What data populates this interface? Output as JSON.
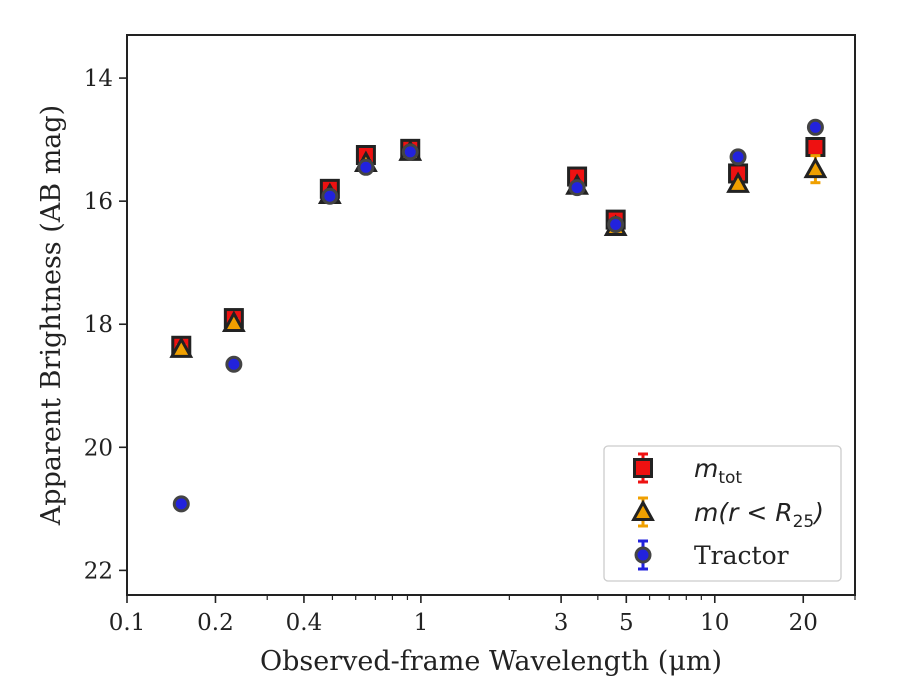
{
  "chart_data": {
    "type": "scatter",
    "title": "",
    "xlabel": "Observed-frame Wavelength (μm)",
    "ylabel": "Apparent Brightness (AB mag)",
    "xscale": "log",
    "xlim": [
      0.1,
      30
    ],
    "ylim": [
      22.4,
      13.3
    ],
    "y_inverted": true,
    "grid": false,
    "legend_position": "lower-right",
    "x_ticks": [
      {
        "value": 0.1,
        "label": "0.1"
      },
      {
        "value": 0.2,
        "label": "0.2"
      },
      {
        "value": 0.4,
        "label": "0.4"
      },
      {
        "value": 1,
        "label": "1"
      },
      {
        "value": 3,
        "label": "3"
      },
      {
        "value": 5,
        "label": "5"
      },
      {
        "value": 10,
        "label": "10"
      },
      {
        "value": 20,
        "label": "20"
      }
    ],
    "x_minor_ticks": [
      0.3,
      0.5,
      0.6,
      0.7,
      0.8,
      0.9,
      2,
      4,
      6,
      7,
      8,
      9,
      30
    ],
    "y_ticks": [
      {
        "value": 14,
        "label": "14"
      },
      {
        "value": 16,
        "label": "16"
      },
      {
        "value": 18,
        "label": "18"
      },
      {
        "value": 20,
        "label": "20"
      },
      {
        "value": 22,
        "label": "22"
      }
    ],
    "series": [
      {
        "key": "mtot",
        "legend_main": "m",
        "legend_sub": "tot",
        "marker": "square",
        "color": "#ee1111",
        "errcolor": "#ee1111",
        "points": [
          {
            "x": 0.153,
            "y": 18.35,
            "err": 0.05
          },
          {
            "x": 0.231,
            "y": 17.9,
            "err": 0.05
          },
          {
            "x": 0.49,
            "y": 15.8,
            "err": 0.05
          },
          {
            "x": 0.65,
            "y": 15.25,
            "err": 0.05
          },
          {
            "x": 0.92,
            "y": 15.15,
            "err": 0.05
          },
          {
            "x": 3.4,
            "y": 15.6,
            "err": 0.05
          },
          {
            "x": 4.6,
            "y": 16.3,
            "err": 0.05
          },
          {
            "x": 12,
            "y": 15.55,
            "err": 0.05
          },
          {
            "x": 22,
            "y": 15.12,
            "err": 0.05
          }
        ]
      },
      {
        "key": "mr25",
        "legend_main": "m(r < R",
        "legend_sub": "25",
        "legend_tail": ")",
        "marker": "triangle",
        "color": "#f0a000",
        "errcolor": "#f0a000",
        "points": [
          {
            "x": 0.153,
            "y": 18.4,
            "err": 0.05
          },
          {
            "x": 0.231,
            "y": 17.98,
            "err": 0.05
          },
          {
            "x": 0.49,
            "y": 15.9,
            "err": 0.05
          },
          {
            "x": 0.65,
            "y": 15.38,
            "err": 0.05
          },
          {
            "x": 0.92,
            "y": 15.2,
            "err": 0.05
          },
          {
            "x": 3.4,
            "y": 15.75,
            "err": 0.05
          },
          {
            "x": 4.6,
            "y": 16.42,
            "err": 0.05
          },
          {
            "x": 12,
            "y": 15.72,
            "err": 0.05
          },
          {
            "x": 22,
            "y": 15.48,
            "err": 0.22
          }
        ]
      },
      {
        "key": "tractor",
        "legend_main": "Tractor",
        "marker": "circle",
        "color": "#2222dd",
        "errcolor": "#2222dd",
        "points": [
          {
            "x": 0.153,
            "y": 20.92,
            "err": 0.05
          },
          {
            "x": 0.231,
            "y": 18.65,
            "err": 0.05
          },
          {
            "x": 0.49,
            "y": 15.92,
            "err": 0.05
          },
          {
            "x": 0.65,
            "y": 15.45,
            "err": 0.05
          },
          {
            "x": 0.92,
            "y": 15.2,
            "err": 0.05
          },
          {
            "x": 3.4,
            "y": 15.78,
            "err": 0.05
          },
          {
            "x": 4.6,
            "y": 16.38,
            "err": 0.05
          },
          {
            "x": 12,
            "y": 15.28,
            "err": 0.05
          },
          {
            "x": 22,
            "y": 14.8,
            "err": 0.05
          }
        ]
      }
    ]
  }
}
